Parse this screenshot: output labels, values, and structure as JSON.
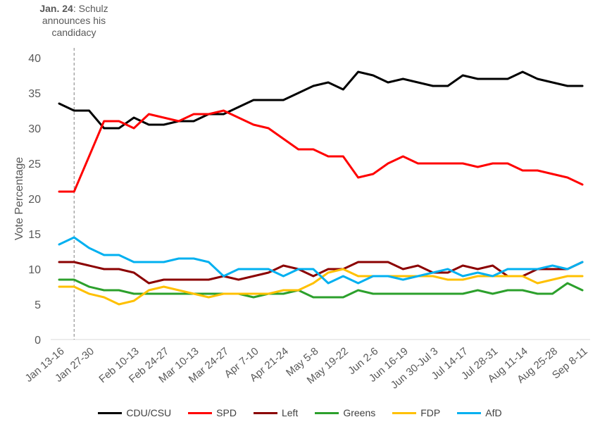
{
  "annotation": {
    "date": "Jan. 24",
    "text": ": Schulz announces his candidacy"
  },
  "chart_data": {
    "type": "line",
    "ylabel": "Vote Percentage",
    "xlabel": "",
    "ylim": [
      0,
      40
    ],
    "yticks": [
      0,
      5,
      10,
      15,
      20,
      25,
      30,
      35,
      40
    ],
    "grid": false,
    "legend_position": "bottom",
    "x_count": 36,
    "xticks": [
      {
        "index": 0,
        "label": "Jan 13-16"
      },
      {
        "index": 2,
        "label": "Jan 27-30"
      },
      {
        "index": 5,
        "label": "Feb 10-13"
      },
      {
        "index": 7,
        "label": "Feb 24-27"
      },
      {
        "index": 9,
        "label": "Mar 10-13"
      },
      {
        "index": 11,
        "label": "Mar 24-27"
      },
      {
        "index": 13,
        "label": "Apr 7-10"
      },
      {
        "index": 15,
        "label": "Apr 21-24"
      },
      {
        "index": 17,
        "label": "May 5-8"
      },
      {
        "index": 19,
        "label": "May 19-22"
      },
      {
        "index": 21,
        "label": "Jun 2-6"
      },
      {
        "index": 23,
        "label": "Jun 16-19"
      },
      {
        "index": 25,
        "label": "Jun 30-Jul 3"
      },
      {
        "index": 27,
        "label": "Jul 14-17"
      },
      {
        "index": 29,
        "label": "Jul 28-31"
      },
      {
        "index": 31,
        "label": "Aug 11-14"
      },
      {
        "index": 33,
        "label": "Aug 25-28"
      },
      {
        "index": 35,
        "label": "Sep 8-11"
      }
    ],
    "event_marker_index": 1,
    "series": [
      {
        "name": "CDU/CSU",
        "color": "#000000",
        "values": [
          33.5,
          32.5,
          32.5,
          30,
          30,
          31.5,
          30.5,
          30.5,
          31,
          31,
          32,
          32,
          33,
          34,
          34,
          34,
          35,
          36,
          36.5,
          35.5,
          38,
          37.5,
          36.5,
          37,
          36.5,
          36,
          36,
          37.5,
          37,
          37,
          37,
          38,
          37,
          36.5,
          36,
          36
        ]
      },
      {
        "name": "SPD",
        "color": "#ff0000",
        "values": [
          21,
          21,
          26,
          31,
          31,
          30,
          32,
          31.5,
          31,
          32,
          32,
          32.5,
          31.5,
          30.5,
          30,
          28.5,
          27,
          27,
          26,
          26,
          23,
          23.5,
          25,
          26,
          25,
          25,
          25,
          25,
          24.5,
          25,
          25,
          24,
          24,
          23.5,
          23,
          22
        ]
      },
      {
        "name": "Left",
        "color": "#8b0000",
        "values": [
          11,
          11,
          10.5,
          10,
          10,
          9.5,
          8,
          8.5,
          8.5,
          8.5,
          8.5,
          9,
          8.5,
          9,
          9.5,
          10.5,
          10,
          9,
          10,
          10,
          11,
          11,
          11,
          10,
          10.5,
          9.5,
          9.5,
          10.5,
          10,
          10.5,
          9,
          9,
          10,
          10,
          10,
          11
        ]
      },
      {
        "name": "Greens",
        "color": "#2ca02c",
        "values": [
          8.5,
          8.5,
          7.5,
          7,
          7,
          6.5,
          6.5,
          6.5,
          6.5,
          6.5,
          6.5,
          6.5,
          6.5,
          6,
          6.5,
          6.5,
          7,
          6,
          6,
          6,
          7,
          6.5,
          6.5,
          6.5,
          6.5,
          6.5,
          6.5,
          6.5,
          7,
          6.5,
          7,
          7,
          6.5,
          6.5,
          8,
          7
        ]
      },
      {
        "name": "FDP",
        "color": "#ffc000",
        "values": [
          7.5,
          7.5,
          6.5,
          6,
          5,
          5.5,
          7,
          7.5,
          7,
          6.5,
          6,
          6.5,
          6.5,
          6.5,
          6.5,
          7,
          7,
          8,
          9.5,
          10,
          9,
          9,
          9,
          9,
          9,
          9,
          8.5,
          8.5,
          9,
          9,
          9,
          9,
          8,
          8.5,
          9,
          9
        ]
      },
      {
        "name": "AfD",
        "color": "#00b0f0",
        "values": [
          13.5,
          14.5,
          13,
          12,
          12,
          11,
          11,
          11,
          11.5,
          11.5,
          11,
          9,
          10,
          10,
          10,
          9,
          10,
          10,
          8,
          9,
          8,
          9,
          9,
          8.5,
          9,
          9.5,
          10,
          9,
          9.5,
          9,
          10,
          10,
          10,
          10.5,
          10,
          11
        ]
      }
    ]
  }
}
